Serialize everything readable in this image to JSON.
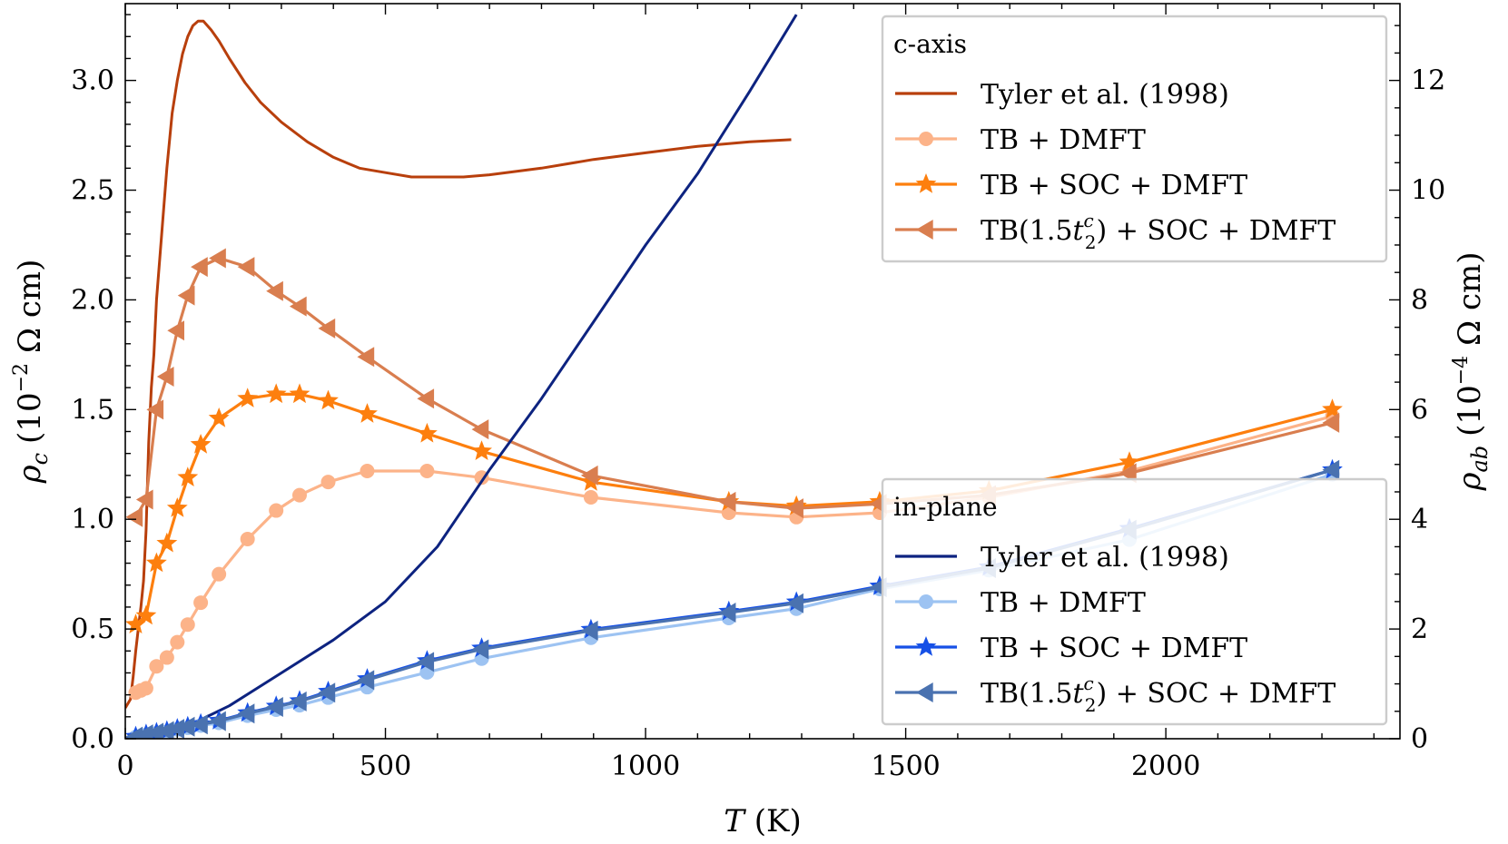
{
  "chart_data": {
    "type": "line",
    "x_axis": {
      "label_main": "T",
      "label_unit": " (K)",
      "range": [
        0,
        2450
      ],
      "ticks": [
        0,
        500,
        1000,
        1500,
        2000
      ],
      "tick_labels": [
        "0",
        "500",
        "1000",
        "1500",
        "2000"
      ]
    },
    "y_left": {
      "label_main": "ρ",
      "label_sub": "c",
      "label_unit_pre": "(10",
      "label_exp": "−2",
      "label_unit_post": " Ω cm)",
      "range": [
        0,
        3.35
      ],
      "ticks": [
        0,
        0.5,
        1.0,
        1.5,
        2.0,
        2.5,
        3.0
      ],
      "tick_labels": [
        "0.0",
        "0.5",
        "1.0",
        "1.5",
        "2.0",
        "2.5",
        "3.0"
      ]
    },
    "y_right": {
      "label_main": "ρ",
      "label_sub": "ab",
      "label_unit_pre": "(10",
      "label_exp": "−4",
      "label_unit_post": " Ω cm)",
      "range": [
        0,
        13.4
      ],
      "ticks": [
        0,
        2,
        4,
        6,
        8,
        10,
        12
      ],
      "tick_labels": [
        "0",
        "2",
        "4",
        "6",
        "8",
        "10",
        "12"
      ]
    },
    "legends": [
      {
        "title": "c-axis",
        "position": "top-right",
        "entries": [
          {
            "label": "Tyler et al. (1998)",
            "color": "#b83f0c",
            "marker": "none"
          },
          {
            "label": "TB + DMFT",
            "color": "#fcb389",
            "marker": "circle"
          },
          {
            "label": "TB + SOC + DMFT",
            "color": "#fd7f0e",
            "marker": "star"
          },
          {
            "label_pre": "TB(1.5",
            "label_var": "t",
            "label_sub": "2",
            "label_sup": "c",
            "label_post": ") + SOC + DMFT",
            "color": "#d97e4f",
            "marker": "triangle-left"
          }
        ]
      },
      {
        "title": "in-plane",
        "position": "right",
        "entries": [
          {
            "label": "Tyler et al. (1998)",
            "color": "#0d2380",
            "marker": "none"
          },
          {
            "label": "TB + DMFT",
            "color": "#9dc3f2",
            "marker": "circle"
          },
          {
            "label": "TB + SOC + DMFT",
            "color": "#1650e6",
            "marker": "star"
          },
          {
            "label_pre": "TB(1.5",
            "label_var": "t",
            "label_sub": "2",
            "label_sup": "c",
            "label_post": ") + SOC + DMFT",
            "color": "#4a72b0",
            "marker": "triangle-left"
          }
        ]
      }
    ],
    "series": [
      {
        "group": "c-axis",
        "axis": "left",
        "color": "#b83f0c",
        "marker": "none",
        "x": [
          0,
          10,
          15,
          20,
          25,
          30,
          35,
          40,
          45,
          50,
          55,
          60,
          70,
          80,
          90,
          100,
          110,
          120,
          130,
          140,
          150,
          165,
          180,
          200,
          230,
          260,
          300,
          350,
          400,
          450,
          500,
          550,
          600,
          650,
          700,
          800,
          900,
          1000,
          1100,
          1200,
          1280
        ],
        "y": [
          0.14,
          0.18,
          0.28,
          0.4,
          0.5,
          0.6,
          0.72,
          0.95,
          1.35,
          1.6,
          1.75,
          2.0,
          2.3,
          2.6,
          2.85,
          3.0,
          3.12,
          3.2,
          3.25,
          3.27,
          3.27,
          3.23,
          3.18,
          3.1,
          2.99,
          2.9,
          2.81,
          2.72,
          2.65,
          2.6,
          2.58,
          2.56,
          2.56,
          2.56,
          2.57,
          2.6,
          2.64,
          2.67,
          2.7,
          2.72,
          2.73
        ]
      },
      {
        "group": "c-axis",
        "axis": "left",
        "color": "#fcb389",
        "marker": "circle",
        "x": [
          20,
          30,
          40,
          60,
          80,
          100,
          120,
          145,
          180,
          235,
          290,
          335,
          390,
          465,
          580,
          685,
          895,
          1160,
          1290,
          1450,
          1660,
          1930,
          2320
        ],
        "y": [
          0.21,
          0.22,
          0.23,
          0.33,
          0.37,
          0.44,
          0.52,
          0.62,
          0.75,
          0.91,
          1.04,
          1.11,
          1.17,
          1.22,
          1.22,
          1.19,
          1.1,
          1.03,
          1.01,
          1.03,
          1.1,
          1.22,
          1.47
        ]
      },
      {
        "group": "c-axis",
        "axis": "left",
        "color": "#fd7f0e",
        "marker": "star",
        "x": [
          20,
          40,
          60,
          80,
          100,
          120,
          145,
          180,
          235,
          290,
          335,
          390,
          465,
          580,
          685,
          895,
          1160,
          1290,
          1450,
          1660,
          1930,
          2320
        ],
        "y": [
          0.52,
          0.56,
          0.8,
          0.89,
          1.05,
          1.19,
          1.34,
          1.46,
          1.55,
          1.57,
          1.57,
          1.54,
          1.48,
          1.39,
          1.31,
          1.17,
          1.08,
          1.06,
          1.08,
          1.13,
          1.26,
          1.5
        ]
      },
      {
        "group": "c-axis",
        "axis": "left",
        "color": "#d97e4f",
        "marker": "triangle-left",
        "x": [
          20,
          40,
          60,
          80,
          100,
          120,
          145,
          180,
          235,
          290,
          335,
          390,
          465,
          580,
          685,
          895,
          1160,
          1290,
          1450,
          1660,
          1930,
          2320
        ],
        "y": [
          1.01,
          1.09,
          1.5,
          1.65,
          1.86,
          2.02,
          2.15,
          2.19,
          2.15,
          2.04,
          1.97,
          1.87,
          1.74,
          1.55,
          1.41,
          1.2,
          1.08,
          1.05,
          1.07,
          1.11,
          1.21,
          1.44
        ]
      },
      {
        "group": "in-plane",
        "axis": "right",
        "color": "#0d2380",
        "marker": "none",
        "x": [
          0,
          50,
          100,
          150,
          200,
          300,
          400,
          500,
          600,
          700,
          800,
          900,
          1000,
          1100,
          1200,
          1290
        ],
        "y": [
          0,
          0.05,
          0.17,
          0.37,
          0.6,
          1.2,
          1.8,
          2.5,
          3.5,
          4.9,
          6.2,
          7.6,
          9.0,
          10.3,
          11.8,
          13.2
        ]
      },
      {
        "group": "in-plane",
        "axis": "right",
        "color": "#9dc3f2",
        "marker": "circle",
        "x": [
          20,
          40,
          60,
          80,
          100,
          120,
          145,
          180,
          235,
          290,
          335,
          390,
          465,
          580,
          685,
          895,
          1160,
          1290,
          1450,
          1660,
          1930,
          2320
        ],
        "y": [
          0.03,
          0.07,
          0.1,
          0.13,
          0.17,
          0.2,
          0.24,
          0.29,
          0.42,
          0.53,
          0.61,
          0.75,
          0.94,
          1.21,
          1.46,
          1.84,
          2.2,
          2.37,
          2.73,
          3.07,
          3.63,
          4.82
        ]
      },
      {
        "group": "in-plane",
        "axis": "right",
        "color": "#1650e6",
        "marker": "star",
        "x": [
          20,
          40,
          60,
          80,
          100,
          120,
          145,
          180,
          235,
          290,
          335,
          390,
          465,
          580,
          685,
          895,
          1160,
          1290,
          1450,
          1660,
          1930,
          2320
        ],
        "y": [
          0.04,
          0.08,
          0.11,
          0.14,
          0.18,
          0.22,
          0.27,
          0.33,
          0.47,
          0.59,
          0.69,
          0.86,
          1.09,
          1.42,
          1.65,
          1.99,
          2.32,
          2.49,
          2.78,
          3.13,
          3.83,
          4.9
        ]
      },
      {
        "group": "in-plane",
        "axis": "right",
        "color": "#4a72b0",
        "marker": "triangle-left",
        "x": [
          20,
          40,
          60,
          80,
          100,
          120,
          145,
          180,
          235,
          290,
          335,
          390,
          465,
          580,
          685,
          895,
          1160,
          1290,
          1450,
          1660,
          1930,
          2320
        ],
        "y": [
          0.04,
          0.08,
          0.11,
          0.14,
          0.18,
          0.22,
          0.26,
          0.32,
          0.46,
          0.58,
          0.68,
          0.84,
          1.07,
          1.4,
          1.63,
          1.97,
          2.3,
          2.47,
          2.76,
          3.11,
          3.81,
          4.9
        ]
      }
    ]
  }
}
